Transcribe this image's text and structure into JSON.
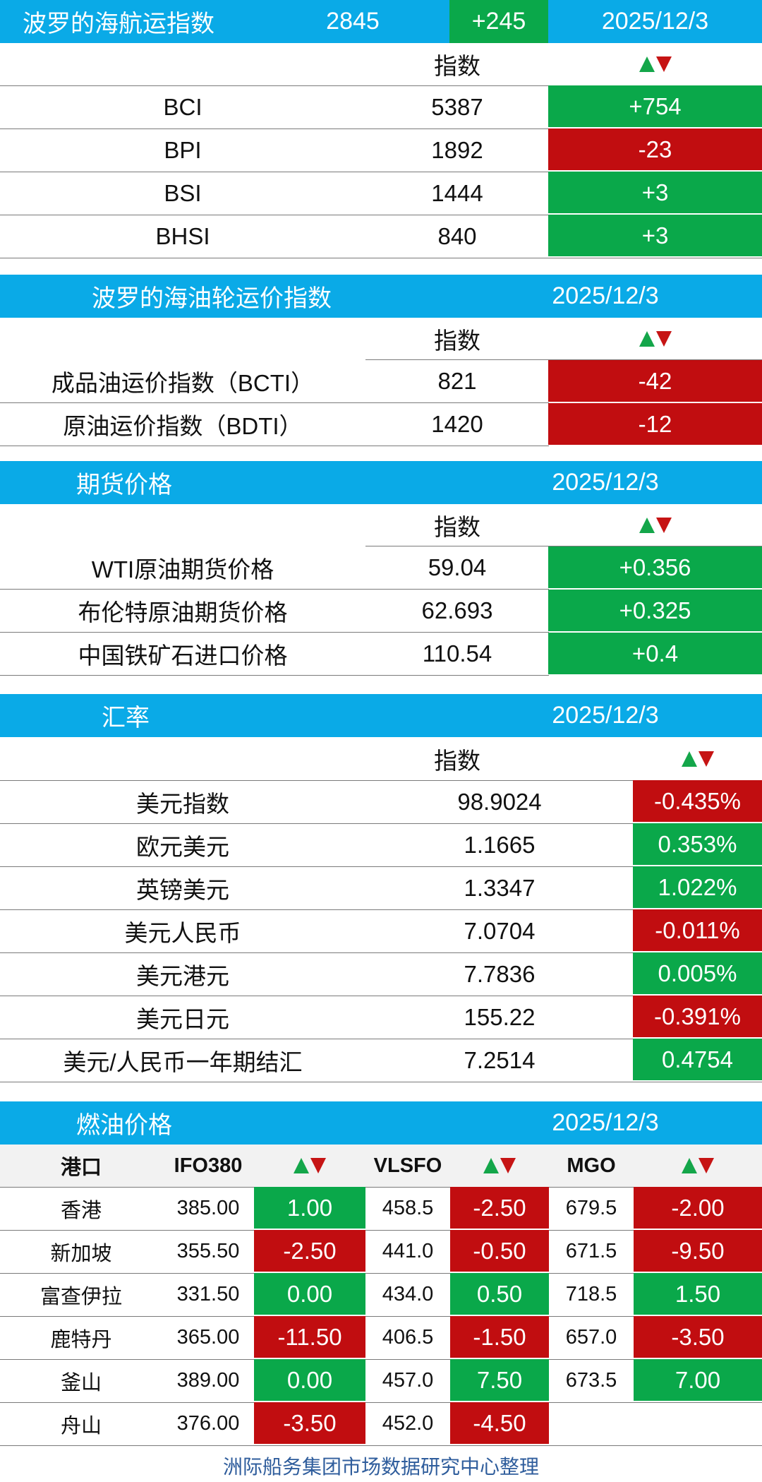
{
  "bdi": {
    "title": "波罗的海航运指数",
    "value": "2845",
    "change": "+245",
    "date": "2025/12/3",
    "col_index": "指数",
    "rows": [
      {
        "name": "BCI",
        "value": "5387",
        "change": "+754",
        "dir": "up"
      },
      {
        "name": "BPI",
        "value": "1892",
        "change": "-23",
        "dir": "down"
      },
      {
        "name": "BSI",
        "value": "1444",
        "change": "+3",
        "dir": "up"
      },
      {
        "name": "BHSI",
        "value": "840",
        "change": "+3",
        "dir": "up"
      }
    ]
  },
  "tanker": {
    "title": "波罗的海油轮运价指数",
    "date": "2025/12/3",
    "col_index": "指数",
    "rows": [
      {
        "name": "成品油运价指数（BCTI）",
        "value": "821",
        "change": "-42",
        "dir": "down"
      },
      {
        "name": "原油运价指数（BDTI）",
        "value": "1420",
        "change": "-12",
        "dir": "down"
      }
    ]
  },
  "futures": {
    "title": "期货价格",
    "date": "2025/12/3",
    "col_index": "指数",
    "rows": [
      {
        "name": "WTI原油期货价格",
        "value": "59.04",
        "change": "+0.356",
        "dir": "up"
      },
      {
        "name": "布伦特原油期货价格",
        "value": "62.693",
        "change": "+0.325",
        "dir": "up"
      },
      {
        "name": "中国铁矿石进口价格",
        "value": "110.54",
        "change": "+0.4",
        "dir": "up"
      }
    ]
  },
  "fx": {
    "title": "汇率",
    "date": "2025/12/3",
    "col_index": "指数",
    "rows": [
      {
        "name": "美元指数",
        "value": "98.9024",
        "change": "-0.435%",
        "dir": "down"
      },
      {
        "name": "欧元美元",
        "value": "1.1665",
        "change": "0.353%",
        "dir": "up"
      },
      {
        "name": "英镑美元",
        "value": "1.3347",
        "change": "1.022%",
        "dir": "up"
      },
      {
        "name": "美元人民币",
        "value": "7.0704",
        "change": "-0.011%",
        "dir": "down"
      },
      {
        "name": "美元港元",
        "value": "7.7836",
        "change": "0.005%",
        "dir": "up"
      },
      {
        "name": "美元日元",
        "value": "155.22",
        "change": "-0.391%",
        "dir": "down"
      },
      {
        "name": "美元/人民币一年期结汇",
        "value": "7.2514",
        "change": "0.4754",
        "dir": "up"
      }
    ]
  },
  "fuel": {
    "title": "燃油价格",
    "date": "2025/12/3",
    "headers": {
      "port": "港口",
      "ifo": "IFO380",
      "vlsfo": "VLSFO",
      "mgo": "MGO"
    },
    "rows": [
      {
        "port": "香港",
        "ifo": "385.00",
        "ifo_chg": "1.00",
        "ifo_dir": "up",
        "vlsfo": "458.5",
        "vlsfo_chg": "-2.50",
        "vlsfo_dir": "down",
        "mgo": "679.5",
        "mgo_chg": "-2.00",
        "mgo_dir": "down"
      },
      {
        "port": "新加坡",
        "ifo": "355.50",
        "ifo_chg": "-2.50",
        "ifo_dir": "down",
        "vlsfo": "441.0",
        "vlsfo_chg": "-0.50",
        "vlsfo_dir": "down",
        "mgo": "671.5",
        "mgo_chg": "-9.50",
        "mgo_dir": "down"
      },
      {
        "port": "富查伊拉",
        "ifo": "331.50",
        "ifo_chg": "0.00",
        "ifo_dir": "up",
        "vlsfo": "434.0",
        "vlsfo_chg": "0.50",
        "vlsfo_dir": "up",
        "mgo": "718.5",
        "mgo_chg": "1.50",
        "mgo_dir": "up"
      },
      {
        "port": "鹿特丹",
        "ifo": "365.00",
        "ifo_chg": "-11.50",
        "ifo_dir": "down",
        "vlsfo": "406.5",
        "vlsfo_chg": "-1.50",
        "vlsfo_dir": "down",
        "mgo": "657.0",
        "mgo_chg": "-3.50",
        "mgo_dir": "down"
      },
      {
        "port": "釜山",
        "ifo": "389.00",
        "ifo_chg": "0.00",
        "ifo_dir": "up",
        "vlsfo": "457.0",
        "vlsfo_chg": "7.50",
        "vlsfo_dir": "up",
        "mgo": "673.5",
        "mgo_chg": "7.00",
        "mgo_dir": "up"
      },
      {
        "port": "舟山",
        "ifo": "376.00",
        "ifo_chg": "-3.50",
        "ifo_dir": "down",
        "vlsfo": "452.0",
        "vlsfo_chg": "-4.50",
        "vlsfo_dir": "down",
        "mgo": "",
        "mgo_chg": "",
        "mgo_dir": ""
      }
    ]
  },
  "footer": "洲际船务集团市场数据研究中心整理",
  "colors": {
    "header_blue": "#0aaae7",
    "up_green": "#0aa84a",
    "down_red": "#c10d10",
    "footer_text": "#2f5d9c"
  }
}
